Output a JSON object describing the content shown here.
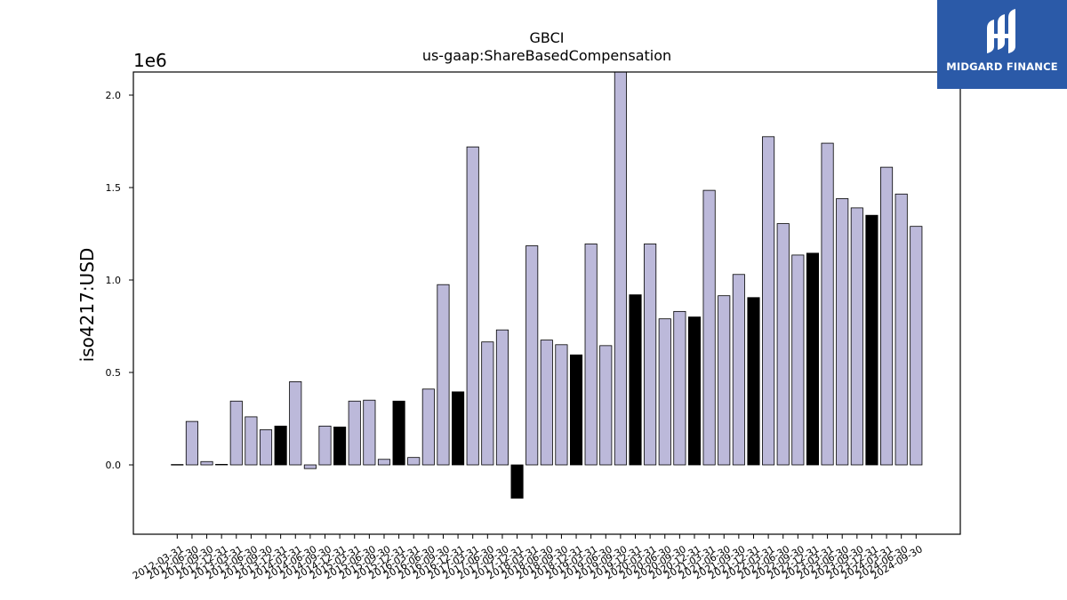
{
  "logo": {
    "text": "MIDGARD FINANCE",
    "icon": "midgard-logo-icon",
    "background": "#2b5aa8"
  },
  "chart_data": {
    "type": "bar",
    "title": "GBCI",
    "subtitle": "us-gaap:ShareBasedCompensation",
    "ylabel": "iso4217:USD",
    "xlabel": "",
    "y_offset_label": "1e6",
    "ylim": [
      -375000,
      2125000
    ],
    "yticks": [
      0.0,
      0.5,
      1.0,
      1.5,
      2.0
    ],
    "grid": false,
    "colors": {
      "light": "#bcb9da",
      "dark": "#000000",
      "edge": "#000000"
    },
    "categories": [
      "2012-03-31",
      "2012-06-30",
      "2012-09-30",
      "2012-12-31",
      "2013-03-31",
      "2013-06-30",
      "2013-09-30",
      "2013-12-31",
      "2014-03-31",
      "2014-06-30",
      "2014-09-30",
      "2014-12-31",
      "2015-03-31",
      "2015-06-30",
      "2015-09-30",
      "2015-12-31",
      "2016-03-31",
      "2016-06-30",
      "2016-09-30",
      "2016-12-31",
      "2017-03-31",
      "2017-06-30",
      "2017-09-30",
      "2017-12-31",
      "2018-03-31",
      "2018-06-30",
      "2018-09-30",
      "2018-12-31",
      "2019-03-31",
      "2019-06-30",
      "2019-09-30",
      "2019-12-31",
      "2020-03-31",
      "2020-06-30",
      "2020-09-30",
      "2020-12-31",
      "2021-03-31",
      "2021-06-30",
      "2021-09-30",
      "2021-12-31",
      "2022-03-31",
      "2022-06-30",
      "2022-09-30",
      "2022-12-31",
      "2023-03-31",
      "2023-06-30",
      "2023-09-30",
      "2023-12-31",
      "2024-03-31",
      "2024-06-30",
      "2024-09-30"
    ],
    "values": [
      2000,
      235000,
      18000,
      3000,
      345000,
      260000,
      190000,
      210000,
      450000,
      -20000,
      210000,
      205000,
      345000,
      350000,
      30000,
      345000,
      40000,
      410000,
      975000,
      395000,
      1720000,
      665000,
      730000,
      -180000,
      1185000,
      675000,
      650000,
      595000,
      1195000,
      645000,
      2150000,
      920000,
      1195000,
      790000,
      830000,
      800000,
      1485000,
      915000,
      1030000,
      905000,
      1775000,
      1305000,
      1135000,
      1145000,
      1740000,
      1440000,
      1390000,
      1350000,
      1610000,
      1465000,
      1290000
    ],
    "highlight": [
      false,
      false,
      false,
      false,
      false,
      false,
      false,
      true,
      false,
      false,
      false,
      true,
      false,
      false,
      false,
      true,
      false,
      false,
      false,
      true,
      false,
      false,
      false,
      true,
      false,
      false,
      false,
      true,
      false,
      false,
      false,
      true,
      false,
      false,
      false,
      true,
      false,
      false,
      false,
      true,
      false,
      false,
      false,
      true,
      false,
      false,
      false,
      true,
      false,
      false,
      false
    ]
  }
}
